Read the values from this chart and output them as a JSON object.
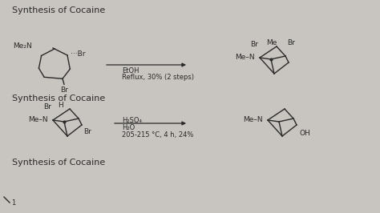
{
  "background_color": "#c8c4bf",
  "paper_color": "#e8e4df",
  "text_color": "#2a2a2a",
  "title1": "Synthesis of Cocaine",
  "title2": "Synthesis of Cocaine",
  "title3": "Synthesis of Cocaine",
  "reaction1_line1": "EtOH",
  "reaction1_line2": "Reflux, 30% (2 steps)",
  "reaction2_line1": "H₂SO₄",
  "reaction2_line2": "H₂O",
  "reaction2_line3": "205-215 °C, 4 h, 24%",
  "font_size_title": 8,
  "font_size_mol": 6.5
}
